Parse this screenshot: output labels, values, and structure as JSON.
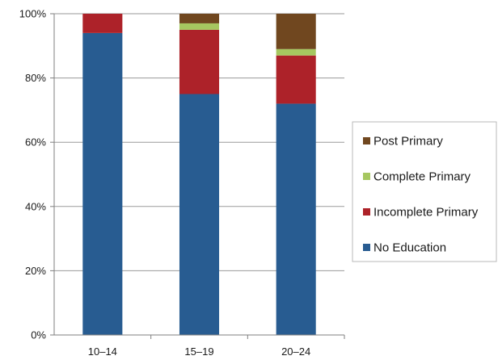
{
  "chart_data": {
    "type": "bar",
    "stacked": true,
    "percent": true,
    "categories": [
      "10–14",
      "15–19",
      "20–24"
    ],
    "series": [
      {
        "name": "No Education",
        "color": "#285c91",
        "values": [
          94,
          75,
          72
        ]
      },
      {
        "name": "Incomplete Primary",
        "color": "#ad2229",
        "values": [
          6,
          20,
          15
        ]
      },
      {
        "name": "Complete Primary",
        "color": "#a6c760",
        "values": [
          0,
          2,
          2
        ]
      },
      {
        "name": "Post Primary",
        "color": "#70471f",
        "values": [
          0,
          3,
          11
        ]
      }
    ],
    "ylim": [
      0,
      100
    ],
    "yticks": [
      "0%",
      "20%",
      "40%",
      "60%",
      "80%",
      "100%"
    ],
    "grid": true,
    "legend_position": "right",
    "legend_order": [
      "Post Primary",
      "Complete Primary",
      "Incomplete Primary",
      "No Education"
    ]
  }
}
